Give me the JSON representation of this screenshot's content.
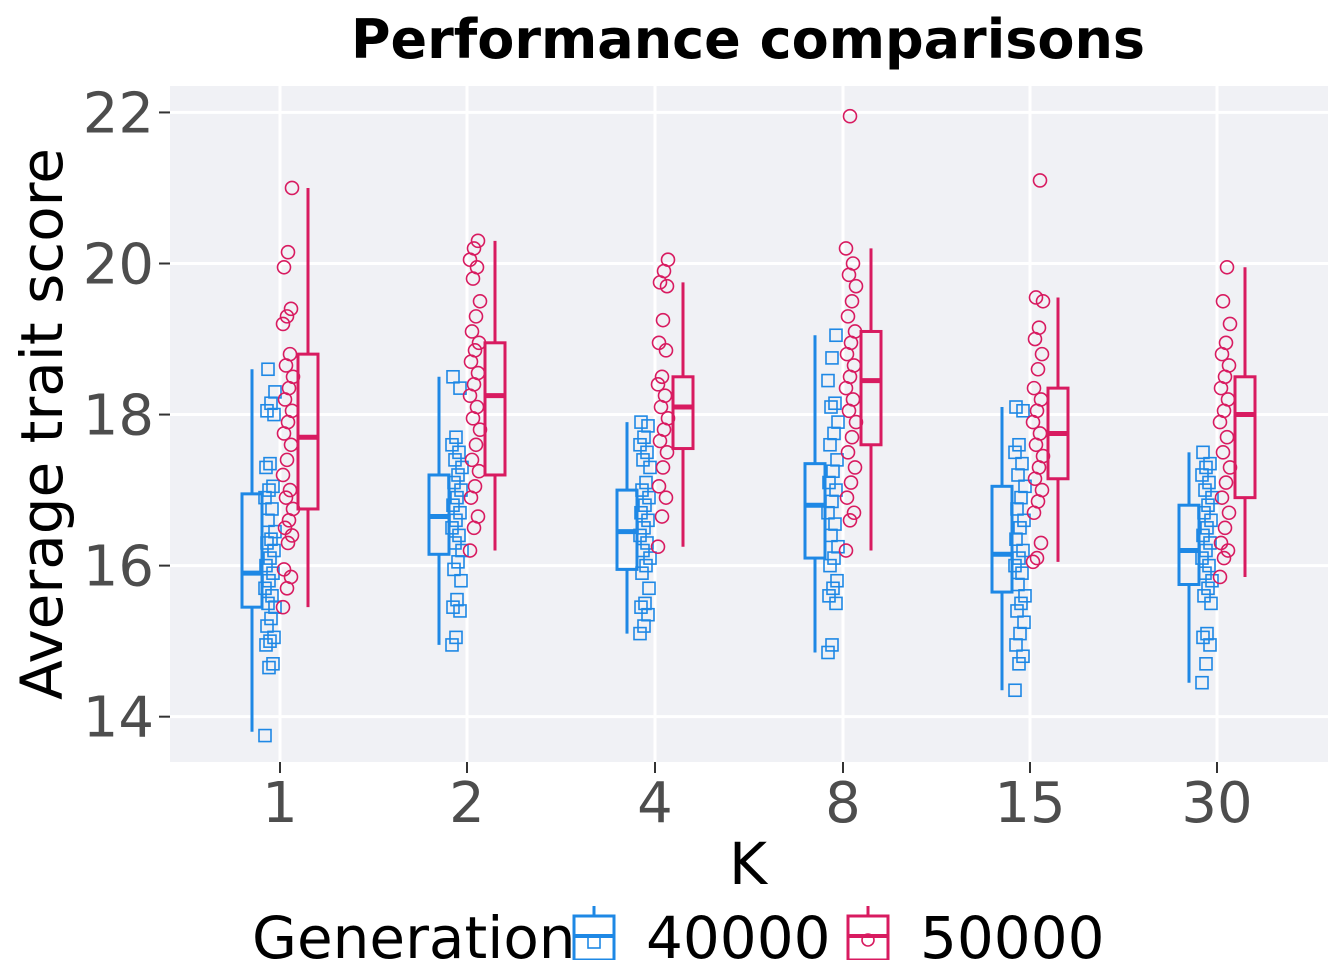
{
  "colors": {
    "gen40000": "#1e88e5",
    "gen50000": "#d81b60",
    "panel": "#f0f1f5",
    "grid": "#ffffff"
  },
  "chart_data": {
    "type": "boxplot",
    "title": "Performance comparisons",
    "xlabel": "K",
    "ylabel": "Average trait score",
    "ylim": [
      13.4,
      22.35
    ],
    "yticks": [
      14,
      16,
      18,
      20,
      22
    ],
    "ytick_labels": [
      "14",
      "16",
      "18",
      "20",
      "22"
    ],
    "categories": [
      "1",
      "2",
      "4",
      "8",
      "15",
      "30"
    ],
    "legend": {
      "title": "Generation",
      "position": "bottom"
    },
    "series": [
      {
        "name": "40000",
        "marker": "square",
        "boxes": [
          {
            "whisker_low": 13.8,
            "q1": 15.45,
            "median": 15.9,
            "q3": 16.95,
            "whisker_high": 18.6
          },
          {
            "whisker_low": 14.95,
            "q1": 16.15,
            "median": 16.65,
            "q3": 17.2,
            "whisker_high": 18.5
          },
          {
            "whisker_low": 15.1,
            "q1": 15.95,
            "median": 16.45,
            "q3": 17.0,
            "whisker_high": 17.9
          },
          {
            "whisker_low": 14.85,
            "q1": 16.1,
            "median": 16.8,
            "q3": 17.35,
            "whisker_high": 19.05
          },
          {
            "whisker_low": 14.35,
            "q1": 15.65,
            "median": 16.15,
            "q3": 17.05,
            "whisker_high": 18.1
          },
          {
            "whisker_low": 14.45,
            "q1": 15.75,
            "median": 16.2,
            "q3": 16.8,
            "whisker_high": 17.5
          }
        ],
        "points": [
          [
            13.75,
            14.65,
            14.7,
            14.95,
            15.0,
            15.05,
            15.2,
            15.3,
            15.45,
            15.5,
            15.6,
            15.7,
            15.8,
            15.9,
            16.0,
            16.1,
            16.2,
            16.3,
            16.35,
            16.45,
            16.6,
            16.75,
            16.9,
            17.0,
            17.05,
            17.3,
            17.35,
            18.0,
            18.05,
            18.15,
            18.3,
            18.6
          ],
          [
            14.95,
            15.05,
            15.4,
            15.45,
            15.55,
            15.8,
            15.95,
            16.05,
            16.2,
            16.3,
            16.4,
            16.5,
            16.6,
            16.7,
            16.8,
            16.9,
            17.0,
            17.1,
            17.2,
            17.3,
            17.4,
            17.5,
            17.6,
            17.7,
            18.35,
            18.5
          ],
          [
            15.1,
            15.2,
            15.35,
            15.45,
            15.5,
            15.7,
            15.9,
            16.0,
            16.1,
            16.2,
            16.3,
            16.4,
            16.5,
            16.6,
            16.7,
            16.8,
            16.9,
            17.0,
            17.1,
            17.3,
            17.4,
            17.5,
            17.6,
            17.7,
            17.85,
            17.9
          ],
          [
            14.85,
            14.95,
            15.5,
            15.6,
            15.7,
            15.8,
            16.0,
            16.1,
            16.25,
            16.4,
            16.55,
            16.7,
            16.85,
            17.0,
            17.1,
            17.25,
            17.4,
            17.6,
            17.75,
            17.9,
            18.1,
            18.15,
            18.45,
            18.75,
            19.05
          ],
          [
            14.35,
            14.7,
            14.8,
            14.95,
            15.1,
            15.25,
            15.4,
            15.5,
            15.6,
            15.75,
            15.9,
            16.0,
            16.1,
            16.2,
            16.35,
            16.5,
            16.6,
            16.75,
            16.9,
            17.05,
            17.2,
            17.35,
            17.5,
            17.6,
            18.05,
            18.1
          ],
          [
            14.45,
            14.7,
            14.95,
            15.05,
            15.1,
            15.5,
            15.6,
            15.7,
            15.8,
            15.9,
            16.0,
            16.1,
            16.2,
            16.3,
            16.4,
            16.5,
            16.6,
            16.7,
            16.8,
            16.9,
            17.0,
            17.1,
            17.2,
            17.3,
            17.35,
            17.5
          ]
        ]
      },
      {
        "name": "50000",
        "marker": "circle",
        "boxes": [
          {
            "whisker_low": 15.45,
            "q1": 16.75,
            "median": 17.7,
            "q3": 18.8,
            "whisker_high": 21.0
          },
          {
            "whisker_low": 16.2,
            "q1": 17.2,
            "median": 18.25,
            "q3": 18.95,
            "whisker_high": 20.3
          },
          {
            "whisker_low": 16.25,
            "q1": 17.55,
            "median": 18.1,
            "q3": 18.5,
            "whisker_high": 19.75
          },
          {
            "whisker_low": 16.2,
            "q1": 17.6,
            "median": 18.45,
            "q3": 19.1,
            "whisker_high": 20.2
          },
          {
            "whisker_low": 16.05,
            "q1": 17.15,
            "median": 17.75,
            "q3": 18.35,
            "whisker_high": 19.55
          },
          {
            "whisker_low": 15.85,
            "q1": 16.9,
            "median": 18.0,
            "q3": 18.5,
            "whisker_high": 19.95
          }
        ],
        "points": [
          [
            15.45,
            15.7,
            15.85,
            15.95,
            16.3,
            16.4,
            16.5,
            16.6,
            16.75,
            16.9,
            17.0,
            17.2,
            17.4,
            17.6,
            17.75,
            17.9,
            18.05,
            18.2,
            18.35,
            18.5,
            18.65,
            18.8,
            19.2,
            19.3,
            19.4,
            19.95,
            20.15,
            21.0
          ],
          [
            16.2,
            16.5,
            16.65,
            16.9,
            17.05,
            17.25,
            17.4,
            17.6,
            17.8,
            17.95,
            18.1,
            18.25,
            18.4,
            18.55,
            18.7,
            18.85,
            18.95,
            19.1,
            19.3,
            19.5,
            19.8,
            19.95,
            20.05,
            20.2,
            20.3
          ],
          [
            16.25,
            16.65,
            16.9,
            17.05,
            17.3,
            17.5,
            17.65,
            17.8,
            17.95,
            18.1,
            18.25,
            18.4,
            18.5,
            18.85,
            18.95,
            19.25,
            19.7,
            19.75,
            19.9,
            20.05
          ],
          [
            16.2,
            16.6,
            16.7,
            16.9,
            17.1,
            17.3,
            17.5,
            17.7,
            17.9,
            18.05,
            18.2,
            18.35,
            18.5,
            18.65,
            18.8,
            18.95,
            19.1,
            19.3,
            19.5,
            19.7,
            19.85,
            20.0,
            20.2,
            21.95
          ],
          [
            16.05,
            16.1,
            16.3,
            16.7,
            16.85,
            17.0,
            17.15,
            17.3,
            17.45,
            17.6,
            17.75,
            17.9,
            18.05,
            18.2,
            18.35,
            18.6,
            18.8,
            19.0,
            19.15,
            19.5,
            19.55,
            21.1
          ],
          [
            15.85,
            16.1,
            16.2,
            16.3,
            16.5,
            16.7,
            16.9,
            17.1,
            17.3,
            17.5,
            17.7,
            17.9,
            18.05,
            18.2,
            18.35,
            18.5,
            18.65,
            18.8,
            18.95,
            19.2,
            19.5,
            19.95
          ]
        ]
      }
    ]
  }
}
